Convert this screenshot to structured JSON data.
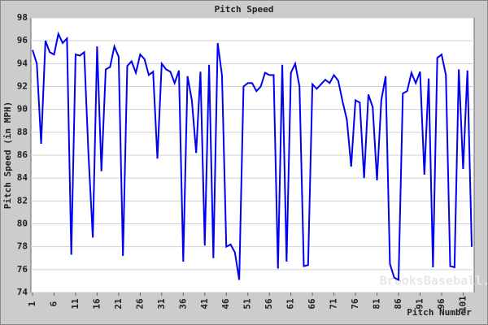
{
  "chart_data": {
    "type": "line",
    "title": "Pitch Speed",
    "x_label": "Pitch Number",
    "y_label": "Pitch Speed (in MPH)",
    "watermark": "BrooksBaseball.net",
    "x": [
      1,
      2,
      3,
      4,
      5,
      6,
      7,
      8,
      9,
      10,
      11,
      12,
      13,
      14,
      15,
      16,
      17,
      18,
      19,
      20,
      21,
      22,
      23,
      24,
      25,
      26,
      27,
      28,
      29,
      30,
      31,
      32,
      33,
      34,
      35,
      36,
      37,
      38,
      39,
      40,
      41,
      42,
      43,
      44,
      45,
      46,
      47,
      48,
      49,
      50,
      51,
      52,
      53,
      54,
      55,
      56,
      57,
      58,
      59,
      60,
      61,
      62,
      63,
      64,
      65,
      66,
      67,
      68,
      69,
      70,
      71,
      72,
      73,
      74,
      75,
      76,
      77,
      78,
      79,
      80,
      81,
      82,
      83,
      84,
      85,
      86,
      87,
      88,
      89,
      90,
      91,
      92,
      93,
      94,
      95,
      96,
      97,
      98,
      99,
      100,
      101,
      102,
      103
    ],
    "series": [
      {
        "name": "Pitch Speed",
        "color": "#0000ee",
        "values": [
          95.2,
          94,
          87,
          96,
          95,
          94.8,
          96.6,
          95.8,
          96.2,
          77.3,
          94.8,
          94.7,
          95,
          86,
          78.8,
          95.5,
          84.6,
          93.5,
          93.7,
          95.5,
          94.6,
          77.2,
          93.8,
          94.2,
          93.2,
          94.8,
          94.4,
          93,
          93.3,
          85.7,
          94,
          93.5,
          93.3,
          92.3,
          93.4,
          76.7,
          92.9,
          90.8,
          86.2,
          93.3,
          78.1,
          93.9,
          77,
          95.8,
          93,
          78,
          78.2,
          77.5,
          75.1,
          92,
          92.3,
          92.3,
          91.6,
          92,
          93.2,
          93,
          93,
          76.1,
          93.9,
          76.7,
          93.2,
          94,
          92,
          76.3,
          76.4,
          92.2,
          91.8,
          92.2,
          92.6,
          92.3,
          93,
          92.5,
          90.7,
          89.1,
          85,
          90.8,
          90.6,
          84,
          91.3,
          90.2,
          83.8,
          90.8,
          92.9,
          76.5,
          75.3,
          75.1,
          91.4,
          91.6,
          93.2,
          92.3,
          93.3,
          84.3,
          92.7,
          76.2,
          94.5,
          94.8,
          93,
          76.3,
          76.2,
          93.5,
          84.8,
          93.4,
          78
        ]
      }
    ],
    "xlim": [
      1,
      103
    ],
    "xticks": [
      1,
      6,
      11,
      16,
      21,
      26,
      31,
      36,
      41,
      46,
      51,
      56,
      61,
      66,
      71,
      76,
      81,
      86,
      91,
      96,
      101
    ],
    "ylim": [
      74,
      98
    ],
    "yticks": [
      74,
      76,
      78,
      80,
      82,
      84,
      86,
      88,
      90,
      92,
      94,
      96,
      98
    ],
    "grid": true
  }
}
